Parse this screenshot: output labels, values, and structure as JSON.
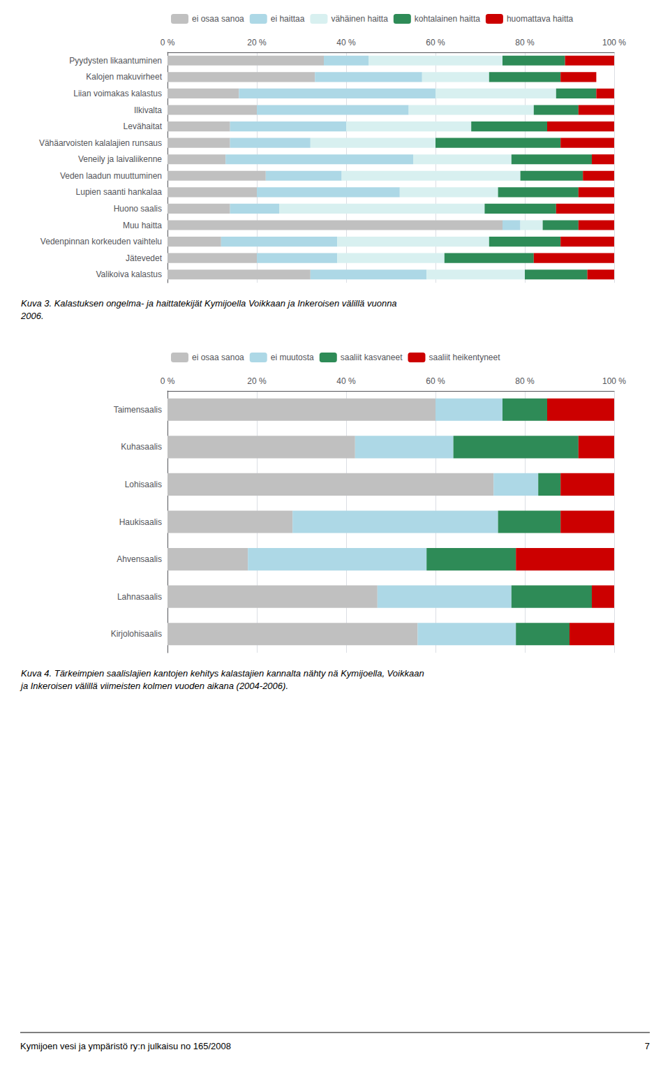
{
  "chart_data": [
    {
      "type": "bar",
      "orientation": "horizontal",
      "stacked": true,
      "grid": true,
      "legend": "top",
      "categories": [
        "Pyydysten likaantuminen",
        "Kalojen makuvirheet",
        "Liian voimakas kalastus",
        "Ilkivalta",
        "Levähaitat",
        "Vähäarvoisten kalalajien runsaus",
        "Veneily ja laivaliikenne",
        "Veden laadun muuttuminen",
        "Lupien saanti hankalaa",
        "Huono saalis",
        "Muu haitta",
        "Vedenpinnan korkeuden vaihtelu",
        "Jätevedet",
        "Valikoiva kalastus"
      ],
      "series": [
        {
          "name": "ei osaa sanoa",
          "color": "#c0c0c0",
          "values": [
            35,
            33,
            16,
            20,
            14,
            14,
            13,
            22,
            20,
            14,
            75,
            12,
            20,
            32
          ]
        },
        {
          "name": "ei haittaa",
          "color": "#add8e6",
          "values": [
            10,
            24,
            44,
            34,
            26,
            18,
            42,
            17,
            32,
            11,
            4,
            26,
            18,
            26
          ]
        },
        {
          "name": "vähäinen haitta",
          "color": "#d8f0f0",
          "values": [
            30,
            15,
            27,
            28,
            28,
            28,
            22,
            40,
            22,
            46,
            5,
            34,
            24,
            22
          ]
        },
        {
          "name": "kohtalainen haitta",
          "color": "#2e8b57",
          "values": [
            14,
            16,
            9,
            10,
            17,
            28,
            18,
            14,
            18,
            16,
            8,
            16,
            20,
            14
          ]
        },
        {
          "name": "huomattava haitta",
          "color": "#cc0000",
          "values": [
            11,
            8,
            4,
            8,
            15,
            12,
            5,
            7,
            8,
            13,
            8,
            12,
            18,
            6
          ]
        }
      ],
      "xlim": [
        0,
        100
      ],
      "xticks": [
        {
          "value": 0,
          "label": "0 %"
        },
        {
          "value": 20,
          "label": "20 %"
        },
        {
          "value": 40,
          "label": "40 %"
        },
        {
          "value": 60,
          "label": "60 %"
        },
        {
          "value": 80,
          "label": "80 %"
        },
        {
          "value": 100,
          "label": "100 %"
        }
      ],
      "annotations": [
        "Kuva 3. Kalastuksen ongelma- ja haittatekijät Kymijoella Voikkaan ja Inkeroisen välillä vuonna\n2006."
      ]
    },
    {
      "type": "bar",
      "orientation": "horizontal",
      "stacked": true,
      "grid": true,
      "legend": "top",
      "categories": [
        "Taimensaalis",
        "Kuhasaalis",
        "Lohisaalis",
        "Haukisaalis",
        "Ahvensaalis",
        "Lahnasaalis",
        "Kirjolohisaalis"
      ],
      "series": [
        {
          "name": "ei osaa sanoa",
          "color": "#c0c0c0",
          "values": [
            60,
            42,
            73,
            28,
            18,
            47,
            56
          ]
        },
        {
          "name": "ei muutosta",
          "color": "#add8e6",
          "values": [
            15,
            22,
            10,
            46,
            40,
            30,
            22
          ]
        },
        {
          "name": "saaliit kasvaneet",
          "color": "#2e8b57",
          "values": [
            10,
            28,
            5,
            14,
            20,
            18,
            12
          ]
        },
        {
          "name": "saaliit heikentyneet",
          "color": "#cc0000",
          "values": [
            15,
            8,
            12,
            12,
            22,
            5,
            10
          ]
        }
      ],
      "xlim": [
        0,
        100
      ],
      "xticks": [
        {
          "value": 0,
          "label": "0 %"
        },
        {
          "value": 20,
          "label": "20 %"
        },
        {
          "value": 40,
          "label": "40 %"
        },
        {
          "value": 60,
          "label": "60 %"
        },
        {
          "value": 80,
          "label": "80 %"
        },
        {
          "value": 100,
          "label": "100 %"
        }
      ],
      "annotations": [
        "Kuva 4. Tärkeimpien saalislajien kantojen kehitys kalastajien kannalta nähty nä Kymijoella, Voikkaan\nja Inkeroisen välillä viimeisten kolmen vuoden aikana (2004-2006)."
      ]
    }
  ],
  "annotations": [
    "Kymijoen vesi ja ympäristö ry:n julkaisu no 165/2008",
    "7"
  ]
}
